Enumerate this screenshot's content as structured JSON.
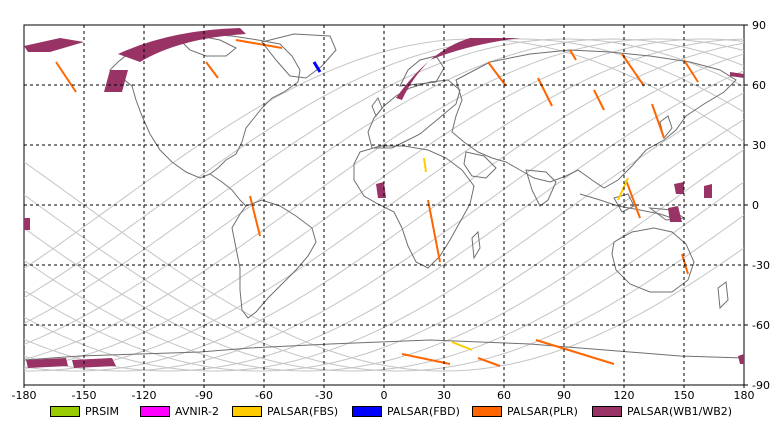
{
  "map": {
    "lon_ticks": [
      "-180",
      "-150",
      "-120",
      "-90",
      "-60",
      "-30",
      "0",
      "30",
      "60",
      "90",
      "120",
      "150",
      "180"
    ],
    "lat_ticks": [
      "90",
      "60",
      "30",
      "0",
      "-30",
      "-60",
      "-90"
    ],
    "lon_range": [
      -180,
      180
    ],
    "lat_range": [
      -90,
      90
    ],
    "grid": true,
    "grid_step_degrees": 30
  },
  "legend": {
    "placement": "bottom",
    "items": [
      {
        "label": "PRSIM",
        "color": "#99cc00"
      },
      {
        "label": "AVNIR-2",
        "color": "#ff00ff"
      },
      {
        "label": "PALSAR(FBS)",
        "color": "#ffcc00"
      },
      {
        "label": "PALSAR(FBD)",
        "color": "#0000ff"
      },
      {
        "label": "PALSAR(PLR)",
        "color": "#ff6600"
      },
      {
        "label": "PALSAR(WB1/WB2)",
        "color": "#993366"
      }
    ]
  }
}
